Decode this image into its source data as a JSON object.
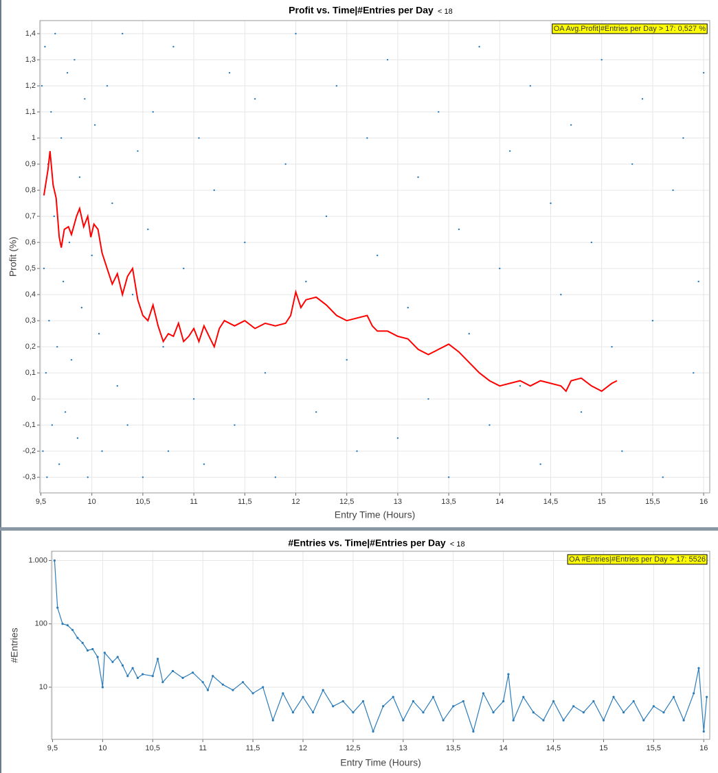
{
  "chart_data": [
    {
      "type": "scatter",
      "title": "Profit vs. Time|#Entries per Day",
      "title_note": "< 18",
      "x_label": "Entry Time (Hours)",
      "y_label": "Profit (%)",
      "annotation": "OA Avg.Profit|#Entries per Day > 17: 0,527 %",
      "xlim": [
        9.49,
        16.06
      ],
      "ylim": [
        -0.36,
        1.45
      ],
      "grid": true,
      "xticks": [
        {
          "value": 9.5,
          "label": "9,5"
        },
        10,
        {
          "value": 10.5,
          "label": "10,5"
        },
        11,
        {
          "value": 11.5,
          "label": "11,5"
        },
        12,
        {
          "value": 12.5,
          "label": "12,5"
        },
        13,
        {
          "value": 13.5,
          "label": "13,5"
        },
        14,
        {
          "value": 14.5,
          "label": "14,5"
        },
        15,
        {
          "value": 15.5,
          "label": "15,5"
        },
        16
      ],
      "yticks": [
        {
          "value": -0.3,
          "label": "-0,3"
        },
        {
          "value": -0.2,
          "label": "-0,2"
        },
        {
          "value": -0.1,
          "label": "-0,1"
        },
        0,
        {
          "value": 0.1,
          "label": "0,1"
        },
        {
          "value": 0.2,
          "label": "0,2"
        },
        {
          "value": 0.3,
          "label": "0,3"
        },
        {
          "value": 0.4,
          "label": "0,4"
        },
        {
          "value": 0.5,
          "label": "0,5"
        },
        {
          "value": 0.6,
          "label": "0,6"
        },
        {
          "value": 0.7,
          "label": "0,7"
        },
        {
          "value": 0.8,
          "label": "0,8"
        },
        {
          "value": 0.9,
          "label": "0,9"
        },
        1,
        {
          "value": 1.1,
          "label": "1,1"
        },
        {
          "value": 1.2,
          "label": "1,2"
        },
        {
          "value": 1.3,
          "label": "1,3"
        },
        {
          "value": 1.4,
          "label": "1,4"
        }
      ],
      "points": {
        "color": "#2b7bb9",
        "x": [
          9.51,
          9.52,
          9.53,
          9.54,
          9.55,
          9.56,
          9.57,
          9.58,
          9.6,
          9.61,
          9.63,
          9.64,
          9.66,
          9.68,
          9.7,
          9.72,
          9.74,
          9.76,
          9.78,
          9.8,
          9.83,
          9.86,
          9.88,
          9.9,
          9.93,
          9.96,
          10.0,
          10.03,
          10.07,
          10.1,
          10.15,
          10.2,
          10.25,
          10.3,
          10.35,
          10.4,
          10.45,
          10.5,
          10.55,
          10.6,
          10.7,
          10.75,
          10.8,
          10.9,
          11.0,
          11.05,
          11.1,
          11.2,
          11.3,
          11.35,
          11.4,
          11.5,
          11.6,
          11.7,
          11.8,
          11.9,
          12.0,
          12.1,
          12.2,
          12.3,
          12.4,
          12.5,
          12.6,
          12.7,
          12.8,
          12.9,
          13.0,
          13.1,
          13.2,
          13.3,
          13.4,
          13.5,
          13.6,
          13.7,
          13.8,
          13.9,
          14.0,
          14.1,
          14.2,
          14.3,
          14.4,
          14.5,
          14.6,
          14.7,
          14.8,
          14.9,
          15.0,
          15.1,
          15.2,
          15.3,
          15.4,
          15.5,
          15.6,
          15.7,
          15.8,
          15.9,
          15.95,
          16.0
        ],
        "values": [
          1.2,
          -0.2,
          0.5,
          1.35,
          0.1,
          -0.3,
          0.9,
          0.3,
          1.1,
          -0.1,
          0.7,
          1.4,
          0.2,
          -0.25,
          1.0,
          0.45,
          -0.05,
          1.25,
          0.6,
          0.15,
          1.3,
          -0.15,
          0.85,
          0.35,
          1.15,
          -0.3,
          0.55,
          1.05,
          0.25,
          -0.2,
          1.2,
          0.75,
          0.05,
          1.4,
          -0.1,
          0.4,
          0.95,
          -0.3,
          0.65,
          1.1,
          0.2,
          -0.2,
          1.35,
          0.5,
          0.0,
          1.0,
          -0.25,
          0.8,
          0.3,
          1.25,
          -0.1,
          0.6,
          1.15,
          0.1,
          -0.3,
          0.9,
          1.4,
          0.45,
          -0.05,
          0.7,
          1.2,
          0.15,
          -0.2,
          1.0,
          0.55,
          1.3,
          -0.15,
          0.35,
          0.85,
          0.0,
          1.1,
          -0.3,
          0.65,
          0.25,
          1.35,
          -0.1,
          0.5,
          0.95,
          0.05,
          1.2,
          -0.25,
          0.75,
          0.4,
          1.05,
          -0.05,
          0.6,
          1.3,
          0.2,
          -0.2,
          0.9,
          1.15,
          0.3,
          -0.3,
          0.8,
          1.0,
          0.1,
          0.45,
          1.25
        ]
      },
      "line": {
        "color": "#ff0000",
        "x": [
          9.53,
          9.57,
          9.59,
          9.62,
          9.65,
          9.68,
          9.7,
          9.73,
          9.77,
          9.8,
          9.85,
          9.88,
          9.92,
          9.96,
          9.99,
          10.02,
          10.06,
          10.1,
          10.15,
          10.2,
          10.25,
          10.3,
          10.35,
          10.4,
          10.45,
          10.5,
          10.55,
          10.6,
          10.65,
          10.7,
          10.75,
          10.8,
          10.85,
          10.9,
          10.95,
          11.0,
          11.05,
          11.1,
          11.15,
          11.2,
          11.25,
          11.3,
          11.4,
          11.5,
          11.6,
          11.7,
          11.8,
          11.9,
          11.95,
          12.0,
          12.05,
          12.1,
          12.2,
          12.3,
          12.4,
          12.5,
          12.6,
          12.7,
          12.75,
          12.8,
          12.9,
          13.0,
          13.1,
          13.2,
          13.3,
          13.4,
          13.5,
          13.6,
          13.7,
          13.8,
          13.9,
          14.0,
          14.1,
          14.2,
          14.3,
          14.4,
          14.5,
          14.6,
          14.65,
          14.7,
          14.8,
          14.9,
          15.0,
          15.1,
          15.15
        ],
        "values": [
          0.78,
          0.88,
          0.95,
          0.82,
          0.77,
          0.62,
          0.58,
          0.65,
          0.66,
          0.63,
          0.7,
          0.73,
          0.66,
          0.7,
          0.62,
          0.67,
          0.65,
          0.56,
          0.5,
          0.44,
          0.48,
          0.4,
          0.47,
          0.5,
          0.38,
          0.32,
          0.3,
          0.36,
          0.28,
          0.22,
          0.25,
          0.24,
          0.29,
          0.22,
          0.24,
          0.27,
          0.22,
          0.28,
          0.24,
          0.2,
          0.27,
          0.3,
          0.28,
          0.3,
          0.27,
          0.29,
          0.28,
          0.29,
          0.32,
          0.41,
          0.35,
          0.38,
          0.39,
          0.36,
          0.32,
          0.3,
          0.31,
          0.32,
          0.28,
          0.26,
          0.26,
          0.24,
          0.23,
          0.19,
          0.17,
          0.19,
          0.21,
          0.18,
          0.14,
          0.1,
          0.07,
          0.05,
          0.06,
          0.07,
          0.05,
          0.07,
          0.06,
          0.05,
          0.03,
          0.07,
          0.08,
          0.05,
          0.03,
          0.06,
          0.07
        ]
      }
    },
    {
      "type": "line",
      "title": "#Entries vs. Time|#Entries per Day",
      "title_note": "< 18",
      "x_label": "Entry Time (Hours)",
      "y_label": "#Entries",
      "annotation": "OA #Entries|#Entries per Day > 17: 5526",
      "xlim": [
        9.49,
        16.06
      ],
      "ylim": [
        1.5,
        1400
      ],
      "log_y": true,
      "grid": true,
      "xticks": [
        {
          "value": 9.5,
          "label": "9,5"
        },
        10,
        {
          "value": 10.5,
          "label": "10,5"
        },
        11,
        {
          "value": 11.5,
          "label": "11,5"
        },
        12,
        {
          "value": 12.5,
          "label": "12,5"
        },
        13,
        {
          "value": 13.5,
          "label": "13,5"
        },
        14,
        {
          "value": 14.5,
          "label": "14,5"
        },
        15,
        {
          "value": 15.5,
          "label": "15,5"
        },
        16
      ],
      "yticks": [
        10,
        100,
        {
          "value": 1000,
          "label": "1.000"
        }
      ],
      "line": {
        "color": "#2b7bb9",
        "markers": true,
        "x": [
          9.52,
          9.55,
          9.6,
          9.65,
          9.7,
          9.75,
          9.8,
          9.85,
          9.9,
          9.95,
          10.0,
          10.02,
          10.1,
          10.15,
          10.2,
          10.25,
          10.3,
          10.35,
          10.4,
          10.5,
          10.55,
          10.6,
          10.7,
          10.8,
          10.9,
          11.0,
          11.05,
          11.1,
          11.2,
          11.3,
          11.4,
          11.5,
          11.6,
          11.7,
          11.8,
          11.9,
          12.0,
          12.1,
          12.2,
          12.3,
          12.4,
          12.5,
          12.6,
          12.7,
          12.8,
          12.9,
          13.0,
          13.1,
          13.2,
          13.3,
          13.4,
          13.5,
          13.6,
          13.7,
          13.8,
          13.9,
          14.0,
          14.05,
          14.1,
          14.2,
          14.3,
          14.4,
          14.5,
          14.6,
          14.7,
          14.8,
          14.9,
          15.0,
          15.1,
          15.2,
          15.3,
          15.4,
          15.5,
          15.6,
          15.7,
          15.8,
          15.9,
          15.95,
          16.0,
          16.03
        ],
        "values": [
          1000,
          180,
          100,
          95,
          80,
          60,
          50,
          38,
          40,
          30,
          10,
          35,
          25,
          30,
          22,
          15,
          20,
          14,
          16,
          15,
          28,
          12,
          18,
          14,
          17,
          12,
          9,
          15,
          11,
          9,
          12,
          8,
          10,
          3,
          8,
          4,
          7,
          4,
          9,
          5,
          6,
          4,
          6,
          2,
          5,
          7,
          3,
          6,
          4,
          7,
          3,
          5,
          6,
          2,
          8,
          4,
          6,
          16,
          3,
          7,
          4,
          3,
          6,
          3,
          5,
          4,
          6,
          3,
          7,
          4,
          6,
          3,
          5,
          4,
          7,
          3,
          8,
          20,
          2,
          7
        ]
      }
    }
  ]
}
